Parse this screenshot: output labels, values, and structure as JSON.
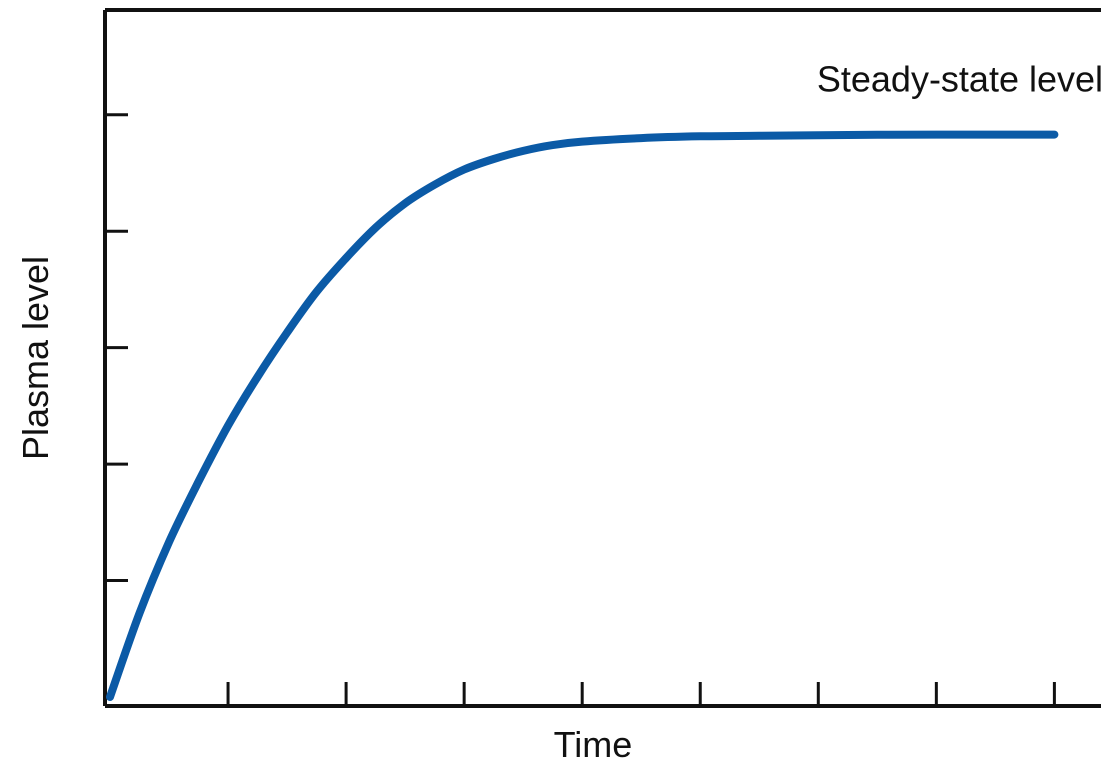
{
  "chart_data": {
    "type": "line",
    "title": "",
    "xlabel": "Time",
    "ylabel": "Plasma level",
    "xlim": [
      0,
      8.2
    ],
    "ylim": [
      0,
      5.9
    ],
    "x_ticks": [
      0,
      1,
      2,
      3,
      4,
      5,
      6,
      7,
      8
    ],
    "y_ticks": [
      0,
      1,
      2,
      3,
      4,
      5
    ],
    "grid": false,
    "series": [
      {
        "color": "#0b5aa6",
        "x": [
          0,
          0.25,
          0.5,
          0.75,
          1,
          1.25,
          1.5,
          1.75,
          2,
          2.25,
          2.5,
          2.75,
          3,
          3.25,
          3.5,
          3.75,
          4,
          4.5,
          5,
          5.5,
          6,
          6.5,
          7,
          7.5,
          8
        ],
        "y": [
          0,
          0.72,
          1.33,
          1.85,
          2.33,
          2.75,
          3.13,
          3.48,
          3.77,
          4.03,
          4.24,
          4.4,
          4.53,
          4.62,
          4.69,
          4.74,
          4.77,
          4.8,
          4.815,
          4.82,
          4.825,
          4.828,
          4.83,
          4.83,
          4.83
        ]
      }
    ],
    "annotations": [
      {
        "text": "Steady-state level",
        "x": 7.2,
        "y": 5.2
      }
    ]
  }
}
